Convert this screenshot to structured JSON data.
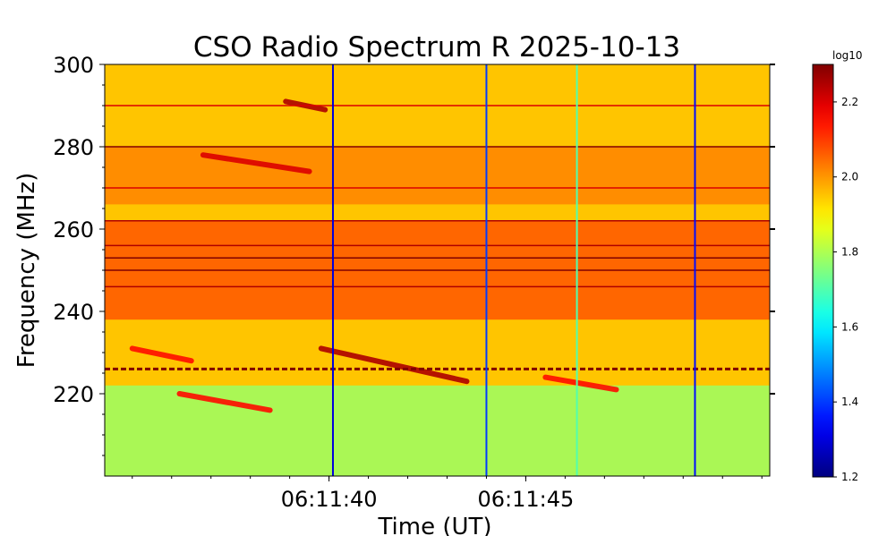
{
  "chart_data": {
    "type": "heatmap",
    "title": "CSO Radio Spectrum R 2025-10-13",
    "xlabel": "Time (UT)",
    "ylabel": "Frequency (MHz)",
    "x_range": [
      "06:11:34.3",
      "06:11:51.2"
    ],
    "xticks": [
      {
        "time": "06:11:40",
        "label": "06:11:40"
      },
      {
        "time": "06:11:45",
        "label": "06:11:45"
      }
    ],
    "ylim": [
      200,
      300
    ],
    "yticks": [
      220,
      240,
      260,
      280,
      300
    ],
    "colorbar": {
      "label": "log10",
      "range": [
        1.2,
        2.3
      ],
      "ticks": [
        "1.2",
        "1.4",
        "1.6",
        "1.8",
        "2.0",
        "2.2"
      ],
      "colormap": "jet"
    },
    "background_level": 1.95,
    "features": {
      "continuum_bands": [
        {
          "freq_low": 238,
          "freq_high": 262,
          "level": 2.12
        },
        {
          "freq_low": 266,
          "freq_high": 280,
          "level": 2.05
        }
      ],
      "green_low_band": {
        "freq_low": 200,
        "freq_high": 222,
        "level": 1.78
      },
      "horizontal_lines": [
        {
          "freq": 280,
          "level": 2.3
        },
        {
          "freq": 262,
          "level": 2.25
        },
        {
          "freq": 256,
          "level": 2.25
        },
        {
          "freq": 253,
          "level": 2.3
        },
        {
          "freq": 250,
          "level": 2.3
        },
        {
          "freq": 246,
          "level": 2.25
        },
        {
          "freq": 270,
          "level": 2.2
        },
        {
          "freq": 290,
          "level": 2.2
        },
        {
          "freq": 226,
          "level": 2.3
        }
      ],
      "drifting_bursts": [
        {
          "t_start": "06:11:38.9",
          "f_start": 291,
          "t_end": "06:11:39.9",
          "f_end": 289,
          "level": 2.25
        },
        {
          "t_start": "06:11:36.8",
          "f_start": 278,
          "t_end": "06:11:39.5",
          "f_end": 274,
          "level": 2.2
        },
        {
          "t_start": "06:11:39.8",
          "f_start": 231,
          "t_end": "06:11:43.5",
          "f_end": 223,
          "level": 2.25
        },
        {
          "t_start": "06:11:35.0",
          "f_start": 231,
          "t_end": "06:11:36.5",
          "f_end": 228,
          "level": 2.15
        },
        {
          "t_start": "06:11:36.2",
          "f_start": 220,
          "t_end": "06:11:38.5",
          "f_end": 216,
          "level": 2.15
        },
        {
          "t_start": "06:11:45.5",
          "f_start": 224,
          "t_end": "06:11:47.3",
          "f_end": 221,
          "level": 2.15
        }
      ],
      "vertical_spikes": [
        {
          "time": "06:11:40.1",
          "level": 1.3
        },
        {
          "time": "06:11:44.0",
          "level": 1.4
        },
        {
          "time": "06:11:46.3",
          "level": 1.7
        },
        {
          "time": "06:11:49.3",
          "level": 1.35
        }
      ]
    }
  }
}
